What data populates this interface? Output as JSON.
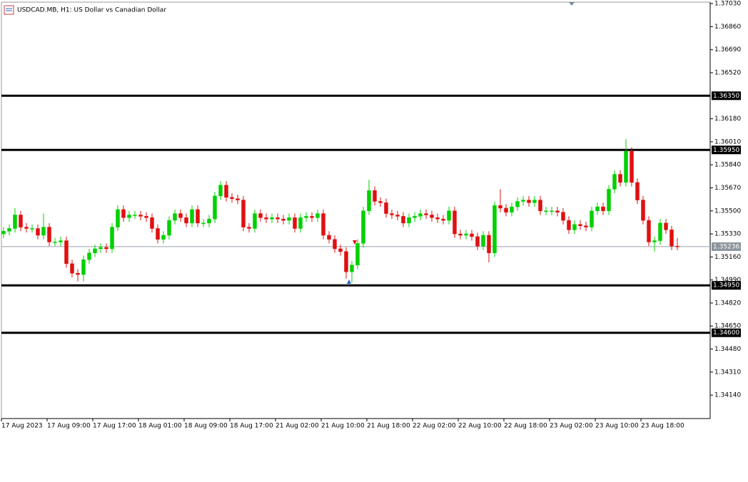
{
  "chart_data": {
    "type": "candlestick",
    "title": "USDCAD.MB, H1:  US Dollar vs Canadian Dollar",
    "categories": [
      "17 Aug 2023",
      null,
      null,
      null,
      null,
      null,
      null,
      null,
      "17 Aug 09:00",
      null,
      null,
      null,
      null,
      null,
      null,
      null,
      "17 Aug 17:00",
      null,
      null,
      null,
      null,
      null,
      null,
      null,
      "18 Aug 01:00",
      null,
      null,
      null,
      null,
      null,
      null,
      null,
      "18 Aug 09:00",
      null,
      null,
      null,
      null,
      null,
      null,
      null,
      "18 Aug 17:00",
      null,
      null,
      null,
      null,
      null,
      null,
      null,
      "21 Aug 02:00",
      null,
      null,
      null,
      null,
      null,
      null,
      null,
      "21 Aug 10:00",
      null,
      null,
      null,
      null,
      null,
      null,
      null,
      "21 Aug 18:00",
      null,
      null,
      null,
      null,
      null,
      null,
      null,
      "22 Aug 02:00",
      null,
      null,
      null,
      null,
      null,
      null,
      null,
      "22 Aug 10:00",
      null,
      null,
      null,
      null,
      null,
      null,
      null,
      "22 Aug 18:00",
      null,
      null,
      null,
      null,
      null,
      null,
      null,
      "23 Aug 02:00",
      null,
      null,
      null,
      null,
      null,
      null,
      null,
      "23 Aug 10:00",
      null,
      null,
      null,
      null,
      null,
      null,
      null,
      "23 Aug 18:00",
      null,
      null,
      null,
      null,
      null,
      null
    ],
    "open": [
      1.3533,
      1.3535,
      1.3537,
      1.3547,
      1.3538,
      1.3537,
      1.3537,
      1.3532,
      1.3538,
      1.3527,
      1.3527,
      1.3528,
      1.3511,
      1.3504,
      1.3503,
      1.3514,
      1.3519,
      1.3522,
      1.3523,
      1.3522,
      1.3538,
      1.3551,
      1.3545,
      1.3547,
      1.3547,
      1.3546,
      1.3545,
      1.3537,
      1.3529,
      1.3532,
      1.3543,
      1.3548,
      1.3545,
      1.3541,
      1.3551,
      1.3541,
      1.3541,
      1.3544,
      1.3561,
      1.3569,
      1.356,
      1.3559,
      1.3558,
      1.3538,
      1.3537,
      1.3548,
      1.3545,
      1.3544,
      1.3545,
      1.3544,
      1.3543,
      1.3545,
      1.3537,
      1.3545,
      1.3546,
      1.3545,
      1.3548,
      1.3532,
      1.3529,
      1.3522,
      1.352,
      1.3505,
      1.351,
      1.3526,
      1.355,
      1.3565,
      1.3557,
      1.3556,
      1.3548,
      1.3547,
      1.3546,
      1.3541,
      1.3545,
      1.3546,
      1.3548,
      1.3547,
      1.3545,
      1.3544,
      1.3543,
      1.355,
      1.3533,
      1.3532,
      1.3533,
      1.3531,
      1.3524,
      1.3532,
      1.3519,
      1.3554,
      1.3552,
      1.3549,
      1.3553,
      1.3557,
      1.3558,
      1.3556,
      1.3558,
      1.355,
      1.355,
      1.355,
      1.3549,
      1.3543,
      1.3536,
      1.354,
      1.3539,
      1.3538,
      1.355,
      1.3553,
      1.355,
      1.3566,
      1.3577,
      1.3571,
      1.3594,
      1.3571,
      1.3558,
      1.3543,
      1.3527,
      1.3528,
      1.3541,
      1.3536,
      1.3524
    ],
    "high": [
      1.3538,
      1.354,
      1.3552,
      1.355,
      1.3541,
      1.354,
      1.354,
      1.3548,
      1.3541,
      1.353,
      1.3531,
      1.3531,
      1.3514,
      1.3507,
      1.3517,
      1.3522,
      1.3525,
      1.3526,
      1.3526,
      1.3541,
      1.3554,
      1.3554,
      1.355,
      1.355,
      1.355,
      1.3549,
      1.3548,
      1.354,
      1.3535,
      1.3546,
      1.3551,
      1.3551,
      1.3548,
      1.3554,
      1.3554,
      1.3544,
      1.3547,
      1.3564,
      1.3572,
      1.3572,
      1.3563,
      1.3562,
      1.3561,
      1.3541,
      1.3551,
      1.3551,
      1.3548,
      1.3548,
      1.3548,
      1.3547,
      1.3548,
      1.3548,
      1.3548,
      1.3549,
      1.3549,
      1.3551,
      1.3551,
      1.3535,
      1.3532,
      1.3525,
      1.3523,
      1.3513,
      1.3529,
      1.3553,
      1.3573,
      1.3568,
      1.356,
      1.3559,
      1.3551,
      1.355,
      1.3549,
      1.3548,
      1.3549,
      1.3551,
      1.3551,
      1.355,
      1.3548,
      1.3547,
      1.3553,
      1.3553,
      1.3536,
      1.3536,
      1.3536,
      1.3534,
      1.3535,
      1.3535,
      1.3557,
      1.3566,
      1.3555,
      1.3556,
      1.356,
      1.3561,
      1.3561,
      1.3561,
      1.3561,
      1.3553,
      1.3553,
      1.3553,
      1.3552,
      1.3546,
      1.3543,
      1.3543,
      1.3542,
      1.3553,
      1.3556,
      1.3556,
      1.3569,
      1.358,
      1.358,
      1.3603,
      1.3597,
      1.3574,
      1.3561,
      1.3546,
      1.3531,
      1.3544,
      1.3544,
      1.3539,
      1.353
    ],
    "low": [
      1.353,
      1.3532,
      1.3534,
      1.3535,
      1.3534,
      1.3534,
      1.3529,
      1.3529,
      1.3524,
      1.3524,
      1.3524,
      1.3508,
      1.3501,
      1.3498,
      1.3498,
      1.3511,
      1.3516,
      1.3519,
      1.3519,
      1.3519,
      1.3535,
      1.3542,
      1.3542,
      1.3544,
      1.3543,
      1.3542,
      1.3534,
      1.3526,
      1.3526,
      1.3529,
      1.354,
      1.3542,
      1.3538,
      1.3538,
      1.3538,
      1.3538,
      1.3538,
      1.3541,
      1.3558,
      1.3557,
      1.3556,
      1.3555,
      1.3535,
      1.3534,
      1.3534,
      1.3542,
      1.3541,
      1.3541,
      1.3541,
      1.354,
      1.354,
      1.3534,
      1.3534,
      1.3542,
      1.3542,
      1.3542,
      1.3529,
      1.3526,
      1.3519,
      1.3517,
      1.35,
      1.3497,
      1.3507,
      1.3523,
      1.3547,
      1.3554,
      1.3553,
      1.3545,
      1.3544,
      1.3543,
      1.3538,
      1.3538,
      1.3542,
      1.3543,
      1.3544,
      1.3542,
      1.3541,
      1.354,
      1.354,
      1.353,
      1.3529,
      1.3529,
      1.3528,
      1.3521,
      1.3521,
      1.3512,
      1.3516,
      1.3549,
      1.3546,
      1.3546,
      1.355,
      1.3554,
      1.3553,
      1.3553,
      1.3547,
      1.3547,
      1.3547,
      1.3546,
      1.354,
      1.3533,
      1.3533,
      1.3536,
      1.3535,
      1.3535,
      1.3547,
      1.3547,
      1.3547,
      1.3563,
      1.3568,
      1.3568,
      1.3568,
      1.3555,
      1.354,
      1.3524,
      1.352,
      1.3525,
      1.3533,
      1.3521,
      1.3521
    ],
    "close": [
      1.3535,
      1.3537,
      1.3547,
      1.3538,
      1.3537,
      1.3537,
      1.3532,
      1.3538,
      1.3527,
      1.3527,
      1.3528,
      1.3511,
      1.3504,
      1.3503,
      1.3514,
      1.3519,
      1.3522,
      1.3523,
      1.3522,
      1.3538,
      1.3551,
      1.3545,
      1.3547,
      1.3547,
      1.3546,
      1.3545,
      1.3537,
      1.3529,
      1.3532,
      1.3543,
      1.3548,
      1.3545,
      1.3541,
      1.3551,
      1.3541,
      1.3541,
      1.3544,
      1.3561,
      1.3569,
      1.356,
      1.3559,
      1.3558,
      1.3538,
      1.3537,
      1.3548,
      1.3545,
      1.3544,
      1.3545,
      1.3544,
      1.3543,
      1.3545,
      1.3537,
      1.3545,
      1.3546,
      1.3545,
      1.3548,
      1.3532,
      1.3529,
      1.3522,
      1.352,
      1.3505,
      1.351,
      1.3526,
      1.355,
      1.3565,
      1.3557,
      1.3556,
      1.3548,
      1.3547,
      1.3546,
      1.3541,
      1.3545,
      1.3546,
      1.3548,
      1.3547,
      1.3545,
      1.3544,
      1.3543,
      1.355,
      1.3533,
      1.3532,
      1.3533,
      1.3531,
      1.3524,
      1.3532,
      1.3519,
      1.3554,
      1.3552,
      1.3549,
      1.3553,
      1.3557,
      1.3558,
      1.3556,
      1.3558,
      1.355,
      1.355,
      1.355,
      1.3549,
      1.3543,
      1.3536,
      1.354,
      1.3539,
      1.3538,
      1.355,
      1.3553,
      1.355,
      1.3566,
      1.3577,
      1.3571,
      1.3594,
      1.3571,
      1.3558,
      1.3543,
      1.3527,
      1.3528,
      1.3541,
      1.3536,
      1.3524,
      1.35236
    ],
    "up_color": "#00d000",
    "down_color": "#e01010",
    "ylim": [
      1.33967,
      1.37041
    ],
    "yticks": [
      {
        "value": 1.3703,
        "label": "1.37030"
      },
      {
        "value": 1.3686,
        "label": "1.36860"
      },
      {
        "value": 1.3669,
        "label": "1.36690"
      },
      {
        "value": 1.3652,
        "label": "1.36520"
      },
      {
        "value": 1.3618,
        "label": "1.36180"
      },
      {
        "value": 1.3601,
        "label": "1.36010"
      },
      {
        "value": 1.3584,
        "label": "1.35840"
      },
      {
        "value": 1.3567,
        "label": "1.35670"
      },
      {
        "value": 1.355,
        "label": "1.35500"
      },
      {
        "value": 1.3533,
        "label": "1.35330"
      },
      {
        "value": 1.3516,
        "label": "1.35160"
      },
      {
        "value": 1.3499,
        "label": "1.34990"
      },
      {
        "value": 1.3482,
        "label": "1.34820"
      },
      {
        "value": 1.3465,
        "label": "1.34650"
      },
      {
        "value": 1.3448,
        "label": "1.34480"
      },
      {
        "value": 1.3431,
        "label": "1.34310"
      },
      {
        "value": 1.3414,
        "label": "1.34140"
      }
    ],
    "levels": [
      {
        "value": 1.3635,
        "label": "1.36350"
      },
      {
        "value": 1.3595,
        "label": "1.35950"
      },
      {
        "value": 1.3495,
        "label": "1.34950"
      },
      {
        "value": 1.346,
        "label": "1.34600"
      }
    ],
    "last_price": {
      "value": 1.35236,
      "label": "1.35236"
    },
    "grid": false
  }
}
